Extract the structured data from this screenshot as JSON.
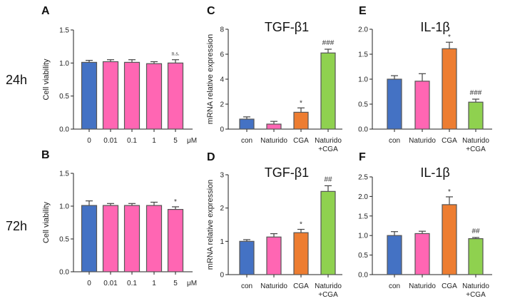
{
  "row_labels": [
    "24h",
    "72h"
  ],
  "colors": {
    "con": "#4472C4",
    "naturido": "#FF66B3",
    "cga": "#ED7D31",
    "combo": "#8FD14F",
    "edge": "#555555"
  },
  "chart_data": [
    {
      "panel": "A",
      "type": "bar",
      "title": "",
      "ylabel": "Cell viability",
      "xunit": "μM",
      "categories": [
        "0",
        "0.01",
        "0.1",
        "1",
        "5"
      ],
      "values": [
        1.01,
        1.02,
        1.01,
        0.99,
        1.0
      ],
      "errors": [
        0.03,
        0.03,
        0.04,
        0.03,
        0.05
      ],
      "annotations": [
        "",
        "",
        "",
        "",
        "n.s."
      ],
      "bar_colors": [
        "con",
        "naturido",
        "naturido",
        "naturido",
        "naturido"
      ],
      "ylim": [
        0,
        1.5
      ],
      "yticks": [
        "0.0",
        "0.5",
        "1.0",
        "1.5"
      ]
    },
    {
      "panel": "B",
      "type": "bar",
      "title": "",
      "ylabel": "Cell viability",
      "xunit": "μM",
      "categories": [
        "0",
        "0.01",
        "0.1",
        "1",
        "5"
      ],
      "values": [
        1.01,
        1.01,
        1.01,
        1.01,
        0.95
      ],
      "errors": [
        0.07,
        0.03,
        0.03,
        0.05,
        0.04
      ],
      "annotations": [
        "",
        "",
        "",
        "",
        "*"
      ],
      "bar_colors": [
        "con",
        "naturido",
        "naturido",
        "naturido",
        "naturido"
      ],
      "ylim": [
        0,
        1.5
      ],
      "yticks": [
        "0.0",
        "0.5",
        "1.0",
        "1.5"
      ]
    },
    {
      "panel": "C",
      "type": "bar",
      "title": "TGF-β1",
      "ylabel": "mRNA relative expression",
      "xunit": "",
      "categories": [
        "con",
        "Naturido",
        "CGA",
        "Naturido\n+CGA"
      ],
      "values": [
        0.8,
        0.4,
        1.35,
        6.1
      ],
      "errors": [
        0.18,
        0.22,
        0.35,
        0.3
      ],
      "annotations": [
        "",
        "",
        "*",
        "###"
      ],
      "bar_colors": [
        "con",
        "naturido",
        "cga",
        "combo"
      ],
      "ylim": [
        0,
        8
      ],
      "yticks": [
        "0",
        "2",
        "4",
        "6",
        "8"
      ]
    },
    {
      "panel": "D",
      "type": "bar",
      "title": "TGF-β1",
      "ylabel": "mRNA relative expression",
      "xunit": "",
      "categories": [
        "con",
        "Naturido",
        "CGA",
        "Naturido\n+CGA"
      ],
      "values": [
        1.0,
        1.13,
        1.26,
        2.5
      ],
      "errors": [
        0.05,
        0.1,
        0.1,
        0.17
      ],
      "annotations": [
        "",
        "",
        "*",
        "##"
      ],
      "bar_colors": [
        "con",
        "naturido",
        "cga",
        "combo"
      ],
      "ylim": [
        0,
        3
      ],
      "yticks": [
        "0",
        "1",
        "2",
        "3"
      ]
    },
    {
      "panel": "E",
      "type": "bar",
      "title": "IL-1β",
      "ylabel": "",
      "xunit": "",
      "categories": [
        "con",
        "Naturido",
        "CGA",
        "Naturido\n+CGA"
      ],
      "values": [
        1.0,
        0.96,
        1.61,
        0.54
      ],
      "errors": [
        0.07,
        0.15,
        0.13,
        0.06
      ],
      "annotations": [
        "",
        "",
        "*",
        "###"
      ],
      "bar_colors": [
        "con",
        "naturido",
        "cga",
        "combo"
      ],
      "ylim": [
        0,
        2.0
      ],
      "yticks": [
        "0.0",
        "0.5",
        "1.0",
        "1.5",
        "2.0"
      ]
    },
    {
      "panel": "F",
      "type": "bar",
      "title": "IL-1β",
      "ylabel": "",
      "xunit": "",
      "categories": [
        "con",
        "Naturido",
        "CGA",
        "Naturido\n+CGA"
      ],
      "values": [
        1.0,
        1.05,
        1.79,
        0.92
      ],
      "errors": [
        0.1,
        0.06,
        0.2,
        0.03
      ],
      "annotations": [
        "",
        "",
        "*",
        "##"
      ],
      "bar_colors": [
        "con",
        "naturido",
        "cga",
        "combo"
      ],
      "ylim": [
        0,
        2.5
      ],
      "yticks": [
        "0.0",
        "0.5",
        "1.0",
        "1.5",
        "2.0",
        "2.5"
      ]
    }
  ]
}
